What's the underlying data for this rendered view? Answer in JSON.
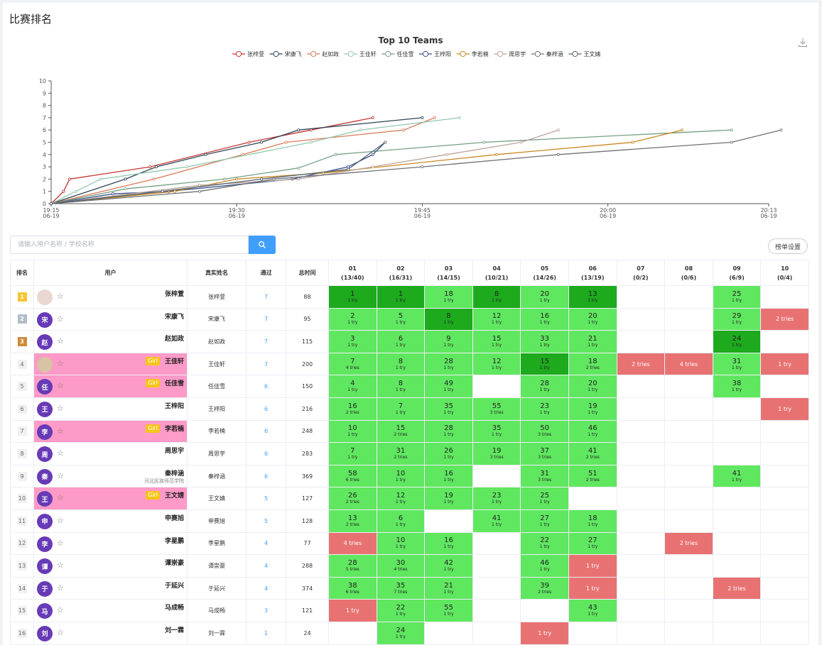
{
  "page_title": "比赛排名",
  "chart_data": {
    "type": "line",
    "title": "Top 10 Teams",
    "x_ticks": [
      {
        "time": "19:15",
        "date": "06-19"
      },
      {
        "time": "19:30",
        "date": "06-19"
      },
      {
        "time": "19:45",
        "date": "06-19"
      },
      {
        "time": "20:00",
        "date": "06-19"
      },
      {
        "time": "20:13",
        "date": "06-19"
      }
    ],
    "x_range_minutes": [
      0,
      58
    ],
    "ylim": [
      0,
      10
    ],
    "y_ticks": [
      0,
      1,
      2,
      3,
      4,
      5,
      6,
      7,
      8,
      9,
      10
    ],
    "legend_position": "top-center",
    "series": [
      {
        "name": "张梓萱",
        "color": "#c23531",
        "points": [
          [
            0,
            0
          ],
          [
            1,
            1
          ],
          [
            1.5,
            2
          ],
          [
            8,
            3
          ],
          [
            16,
            5
          ],
          [
            21,
            6
          ],
          [
            26,
            7
          ]
        ]
      },
      {
        "name": "宋康飞",
        "color": "#2f4554",
        "points": [
          [
            0,
            0
          ],
          [
            6,
            2
          ],
          [
            8.5,
            3
          ],
          [
            12.5,
            4
          ],
          [
            17,
            5
          ],
          [
            20,
            6
          ],
          [
            30,
            7
          ]
        ]
      },
      {
        "name": "赵如政",
        "color": "#d97a58",
        "points": [
          [
            0,
            0
          ],
          [
            8.3,
            2
          ],
          [
            15.5,
            4
          ],
          [
            19,
            5
          ],
          [
            28.5,
            6
          ],
          [
            31,
            7
          ]
        ]
      },
      {
        "name": "王佳轩",
        "color": "#91c7ae",
        "points": [
          [
            0,
            0
          ],
          [
            2,
            1
          ],
          [
            4,
            2
          ],
          [
            11,
            3
          ],
          [
            21,
            5
          ],
          [
            25,
            6
          ],
          [
            33,
            7
          ]
        ]
      },
      {
        "name": "任佳雪",
        "color": "#749f83",
        "points": [
          [
            0,
            0
          ],
          [
            6,
            1.2
          ],
          [
            14,
            2
          ],
          [
            20,
            2.9
          ],
          [
            23,
            4
          ],
          [
            35,
            5
          ],
          [
            55,
            6
          ]
        ]
      },
      {
        "name": "王梓阳",
        "color": "#38508d",
        "points": [
          [
            0,
            0
          ],
          [
            5,
            0.8
          ],
          [
            9.5,
            1
          ],
          [
            19.5,
            2
          ],
          [
            24,
            3
          ],
          [
            26,
            4
          ],
          [
            27,
            5
          ]
        ]
      },
      {
        "name": "李若楠",
        "color": "#ca8622",
        "points": [
          [
            0,
            0
          ],
          [
            10,
            1
          ],
          [
            15,
            2
          ],
          [
            22,
            2.5
          ],
          [
            36,
            4
          ],
          [
            47,
            5
          ],
          [
            51,
            6
          ]
        ]
      },
      {
        "name": "周思宇",
        "color": "#bda29a",
        "points": [
          [
            0,
            0
          ],
          [
            12,
            1.5
          ],
          [
            20,
            2
          ],
          [
            26,
            3
          ],
          [
            32,
            4
          ],
          [
            38,
            5
          ],
          [
            41,
            6
          ]
        ]
      },
      {
        "name": "秦梓涵",
        "color": "#6e7074",
        "points": [
          [
            0,
            0
          ],
          [
            12,
            1
          ],
          [
            18,
            2
          ],
          [
            30,
            3
          ],
          [
            41,
            4
          ],
          [
            55,
            5
          ],
          [
            59,
            6
          ]
        ]
      },
      {
        "name": "王文婧",
        "color": "#546570",
        "points": [
          [
            0,
            0
          ],
          [
            9,
            1
          ],
          [
            17,
            2
          ],
          [
            24,
            2.8
          ],
          [
            27,
            5
          ]
        ]
      }
    ]
  },
  "search": {
    "placeholder": "请输入用户名称 / 学校名称"
  },
  "settings_label": "榜单设置",
  "table": {
    "headers": {
      "rank": "排名",
      "user": "用户",
      "real_name": "真实姓名",
      "solved": "通过",
      "time": "总时间"
    },
    "problems": [
      {
        "id": "01",
        "stat": "(13/40)"
      },
      {
        "id": "02",
        "stat": "(16/31)"
      },
      {
        "id": "03",
        "stat": "(14/15)"
      },
      {
        "id": "04",
        "stat": "(10/21)"
      },
      {
        "id": "05",
        "stat": "(14/26)"
      },
      {
        "id": "06",
        "stat": "(13/19)"
      },
      {
        "id": "07",
        "stat": "(0/2)"
      },
      {
        "id": "08",
        "stat": "(0/6)"
      },
      {
        "id": "09",
        "stat": "(6/9)"
      },
      {
        "id": "10",
        "stat": "(0/4)"
      }
    ],
    "rows": [
      {
        "rank": "1",
        "avatar": "photo",
        "star": "☆",
        "girl": "",
        "name": "张梓萱",
        "school": "",
        "real": "张梓萱",
        "solved": "7",
        "time": "88",
        "cells": [
          [
            "fb",
            "1",
            "1 try"
          ],
          [
            "fb",
            "1",
            "1 try"
          ],
          [
            "ac",
            "18",
            "1 try"
          ],
          [
            "fb",
            "8",
            "1 try"
          ],
          [
            "ac",
            "20",
            "1 try"
          ],
          [
            "fb",
            "13",
            "1 try"
          ],
          [],
          [],
          [
            "ac",
            "25",
            "1 try"
          ],
          []
        ]
      },
      {
        "rank": "2",
        "avatar": "宋",
        "star": "☆",
        "girl": "",
        "name": "宋康飞",
        "school": "",
        "real": "宋康飞",
        "solved": "7",
        "time": "95",
        "cells": [
          [
            "ac",
            "2",
            "1 try"
          ],
          [
            "ac",
            "5",
            "1 try"
          ],
          [
            "fb",
            "8",
            "1 try"
          ],
          [
            "ac",
            "12",
            "1 try"
          ],
          [
            "ac",
            "16",
            "1 try"
          ],
          [
            "ac",
            "20",
            "1 try"
          ],
          [],
          [],
          [
            "ac",
            "29",
            "1 try"
          ],
          [
            "wa",
            "2 tries"
          ]
        ]
      },
      {
        "rank": "3",
        "avatar": "赵",
        "star": "☆",
        "girl": "",
        "name": "赵如政",
        "school": "",
        "real": "赵如政",
        "solved": "7",
        "time": "115",
        "cells": [
          [
            "ac",
            "3",
            "1 try"
          ],
          [
            "ac",
            "6",
            "1 try"
          ],
          [
            "ac",
            "9",
            "1 try"
          ],
          [
            "ac",
            "15",
            "1 try"
          ],
          [
            "ac",
            "33",
            "1 try"
          ],
          [
            "ac",
            "21",
            "1 try"
          ],
          [],
          [],
          [
            "fb",
            "24",
            "1 try"
          ],
          []
        ]
      },
      {
        "rank": "4",
        "avatar": "photo2",
        "star": "☆",
        "girl": "Girl",
        "name": "王佳轩",
        "school": "",
        "real": "王佳轩",
        "solved": "7",
        "time": "200",
        "cells": [
          [
            "ac",
            "7",
            "4 tries"
          ],
          [
            "ac",
            "8",
            "1 try"
          ],
          [
            "ac",
            "28",
            "1 try"
          ],
          [
            "ac",
            "12",
            "1 try"
          ],
          [
            "fb",
            "15",
            "1 try"
          ],
          [
            "ac",
            "18",
            "2 tries"
          ],
          [
            "wa",
            "2 tries"
          ],
          [
            "wa",
            "4 tries"
          ],
          [
            "ac",
            "31",
            "1 try"
          ],
          [
            "wa",
            "1 try"
          ]
        ]
      },
      {
        "rank": "5",
        "avatar": "任",
        "star": "☆",
        "girl": "Girl",
        "name": "任佳雪",
        "school": "",
        "real": "任佳雪",
        "solved": "6",
        "time": "150",
        "cells": [
          [
            "ac",
            "4",
            "1 try"
          ],
          [
            "ac",
            "8",
            "1 try"
          ],
          [
            "ac",
            "49",
            "1 try"
          ],
          [],
          [
            "ac",
            "28",
            "1 try"
          ],
          [
            "ac",
            "20",
            "1 try"
          ],
          [],
          [],
          [
            "ac",
            "38",
            "1 try"
          ],
          []
        ]
      },
      {
        "rank": "6",
        "avatar": "王",
        "star": "☆",
        "girl": "",
        "name": "王梓阳",
        "school": "",
        "real": "王梓阳",
        "solved": "6",
        "time": "216",
        "cells": [
          [
            "ac",
            "16",
            "2 tries"
          ],
          [
            "ac",
            "7",
            "1 try"
          ],
          [
            "ac",
            "35",
            "1 try"
          ],
          [
            "ac",
            "55",
            "3 tries"
          ],
          [
            "ac",
            "23",
            "1 try"
          ],
          [
            "ac",
            "19",
            "1 try"
          ],
          [],
          [],
          [],
          [
            "wa",
            "1 try"
          ]
        ]
      },
      {
        "rank": "7",
        "avatar": "李",
        "star": "☆",
        "girl": "Girl",
        "name": "李若楠",
        "school": "",
        "real": "李若楠",
        "solved": "6",
        "time": "248",
        "cells": [
          [
            "ac",
            "10",
            "1 try"
          ],
          [
            "ac",
            "15",
            "2 tries"
          ],
          [
            "ac",
            "28",
            "1 try"
          ],
          [
            "ac",
            "35",
            "1 try"
          ],
          [
            "ac",
            "50",
            "3 tries"
          ],
          [
            "ac",
            "46",
            "1 try"
          ],
          [],
          [],
          [],
          []
        ]
      },
      {
        "rank": "8",
        "avatar": "周",
        "star": "☆",
        "girl": "",
        "name": "周思宇",
        "school": "",
        "real": "周思宇",
        "solved": "6",
        "time": "283",
        "cells": [
          [
            "ac",
            "7",
            "1 try"
          ],
          [
            "ac",
            "31",
            "2 tries"
          ],
          [
            "ac",
            "26",
            "1 try"
          ],
          [
            "ac",
            "19",
            "3 tries"
          ],
          [
            "ac",
            "37",
            "3 tries"
          ],
          [
            "ac",
            "41",
            "2 tries"
          ],
          [],
          [],
          [],
          []
        ]
      },
      {
        "rank": "9",
        "avatar": "秦",
        "star": "☆",
        "girl": "",
        "name": "秦梓涵",
        "school": "河北民族师范学院",
        "real": "秦梓涵",
        "solved": "6",
        "time": "369",
        "cells": [
          [
            "ac",
            "58",
            "6 tries"
          ],
          [
            "ac",
            "10",
            "1 try"
          ],
          [
            "ac",
            "16",
            "1 try"
          ],
          [],
          [
            "ac",
            "31",
            "3 tries"
          ],
          [
            "ac",
            "51",
            "2 tries"
          ],
          [],
          [],
          [
            "ac",
            "41",
            "1 try"
          ],
          []
        ]
      },
      {
        "rank": "10",
        "avatar": "王",
        "star": "☆",
        "girl": "Girl",
        "name": "王文婧",
        "school": "",
        "real": "王文婧",
        "solved": "5",
        "time": "127",
        "cells": [
          [
            "ac",
            "26",
            "2 tries"
          ],
          [
            "ac",
            "12",
            "1 try"
          ],
          [
            "ac",
            "19",
            "1 try"
          ],
          [
            "ac",
            "23",
            "1 try"
          ],
          [
            "ac",
            "25",
            "1 try"
          ],
          [],
          [],
          [],
          [],
          []
        ]
      },
      {
        "rank": "11",
        "avatar": "申",
        "star": "☆",
        "girl": "",
        "name": "申赛旭",
        "school": "",
        "real": "申赛旭",
        "solved": "5",
        "time": "128",
        "cells": [
          [
            "ac",
            "13",
            "2 tries"
          ],
          [
            "ac",
            "6",
            "1 try"
          ],
          [],
          [
            "ac",
            "41",
            "1 try"
          ],
          [
            "ac",
            "27",
            "1 try"
          ],
          [
            "ac",
            "18",
            "1 try"
          ],
          [],
          [],
          [],
          []
        ]
      },
      {
        "rank": "12",
        "avatar": "李",
        "star": "☆",
        "girl": "",
        "name": "李星鹏",
        "school": "",
        "real": "李星鹏",
        "solved": "4",
        "time": "77",
        "cells": [
          [
            "wa",
            "4 tries"
          ],
          [
            "ac",
            "10",
            "1 try"
          ],
          [
            "ac",
            "16",
            "1 try"
          ],
          [],
          [
            "ac",
            "22",
            "1 try"
          ],
          [
            "ac",
            "27",
            "1 try"
          ],
          [],
          [
            "wa",
            "2 tries"
          ],
          [],
          []
        ]
      },
      {
        "rank": "13",
        "avatar": "谭",
        "star": "☆",
        "girl": "",
        "name": "谭崇豪",
        "school": "",
        "real": "谭崇豪",
        "solved": "4",
        "time": "288",
        "cells": [
          [
            "ac",
            "28",
            "5 tries"
          ],
          [
            "ac",
            "30",
            "4 tries"
          ],
          [
            "ac",
            "42",
            "1 try"
          ],
          [],
          [
            "ac",
            "46",
            "1 try"
          ],
          [
            "wa",
            "1 try"
          ],
          [],
          [],
          [],
          []
        ]
      },
      {
        "rank": "14",
        "avatar": "于",
        "star": "☆",
        "girl": "",
        "name": "于延兴",
        "school": "",
        "real": "于延兴",
        "solved": "4",
        "time": "374",
        "cells": [
          [
            "ac",
            "38",
            "6 tries"
          ],
          [
            "ac",
            "35",
            "7 tries"
          ],
          [
            "ac",
            "21",
            "1 try"
          ],
          [],
          [
            "ac",
            "39",
            "2 tries"
          ],
          [
            "wa",
            "1 try"
          ],
          [],
          [],
          [
            "wa",
            "2 tries"
          ],
          []
        ]
      },
      {
        "rank": "15",
        "avatar": "马",
        "star": "☆",
        "girl": "",
        "name": "马成畅",
        "school": "",
        "real": "马成畅",
        "solved": "3",
        "time": "121",
        "cells": [
          [
            "wa",
            "1 try"
          ],
          [
            "ac",
            "22",
            "1 try"
          ],
          [
            "ac",
            "55",
            "1 try"
          ],
          [],
          [],
          [
            "ac",
            "43",
            "1 try"
          ],
          [],
          [],
          [],
          []
        ]
      },
      {
        "rank": "16",
        "avatar": "刘",
        "star": "☆",
        "girl": "",
        "name": "刘一霖",
        "school": "",
        "real": "刘一霖",
        "solved": "1",
        "time": "24",
        "cells": [
          [],
          [
            "ac",
            "24",
            "1 try"
          ],
          [],
          [],
          [
            "wa",
            "1 try"
          ],
          [],
          [],
          [],
          [],
          []
        ]
      }
    ]
  }
}
